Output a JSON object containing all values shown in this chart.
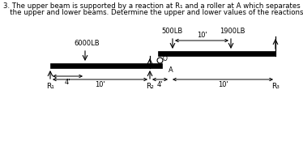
{
  "bg_color": "#ffffff",
  "text_color": "#000000",
  "load_500": "500LB",
  "load_1900": "1900LB",
  "load_6000": "6000LB",
  "dim_10_upper": "10'",
  "dim_10_lower1": "10'",
  "dim_10_lower2": "10'",
  "dim_4_upper": "4'",
  "dim_4_lower": "4'",
  "label_A": "A",
  "label_O": "O",
  "label_R1": "R₁",
  "label_R2": "R₂",
  "label_R3": "R₃",
  "title1": "3. The upper beam is supported by a reaction at R₁ and a roller at A which separates",
  "title2": "   the upper and lower beams. Determine the upper and lower values of the reactions."
}
